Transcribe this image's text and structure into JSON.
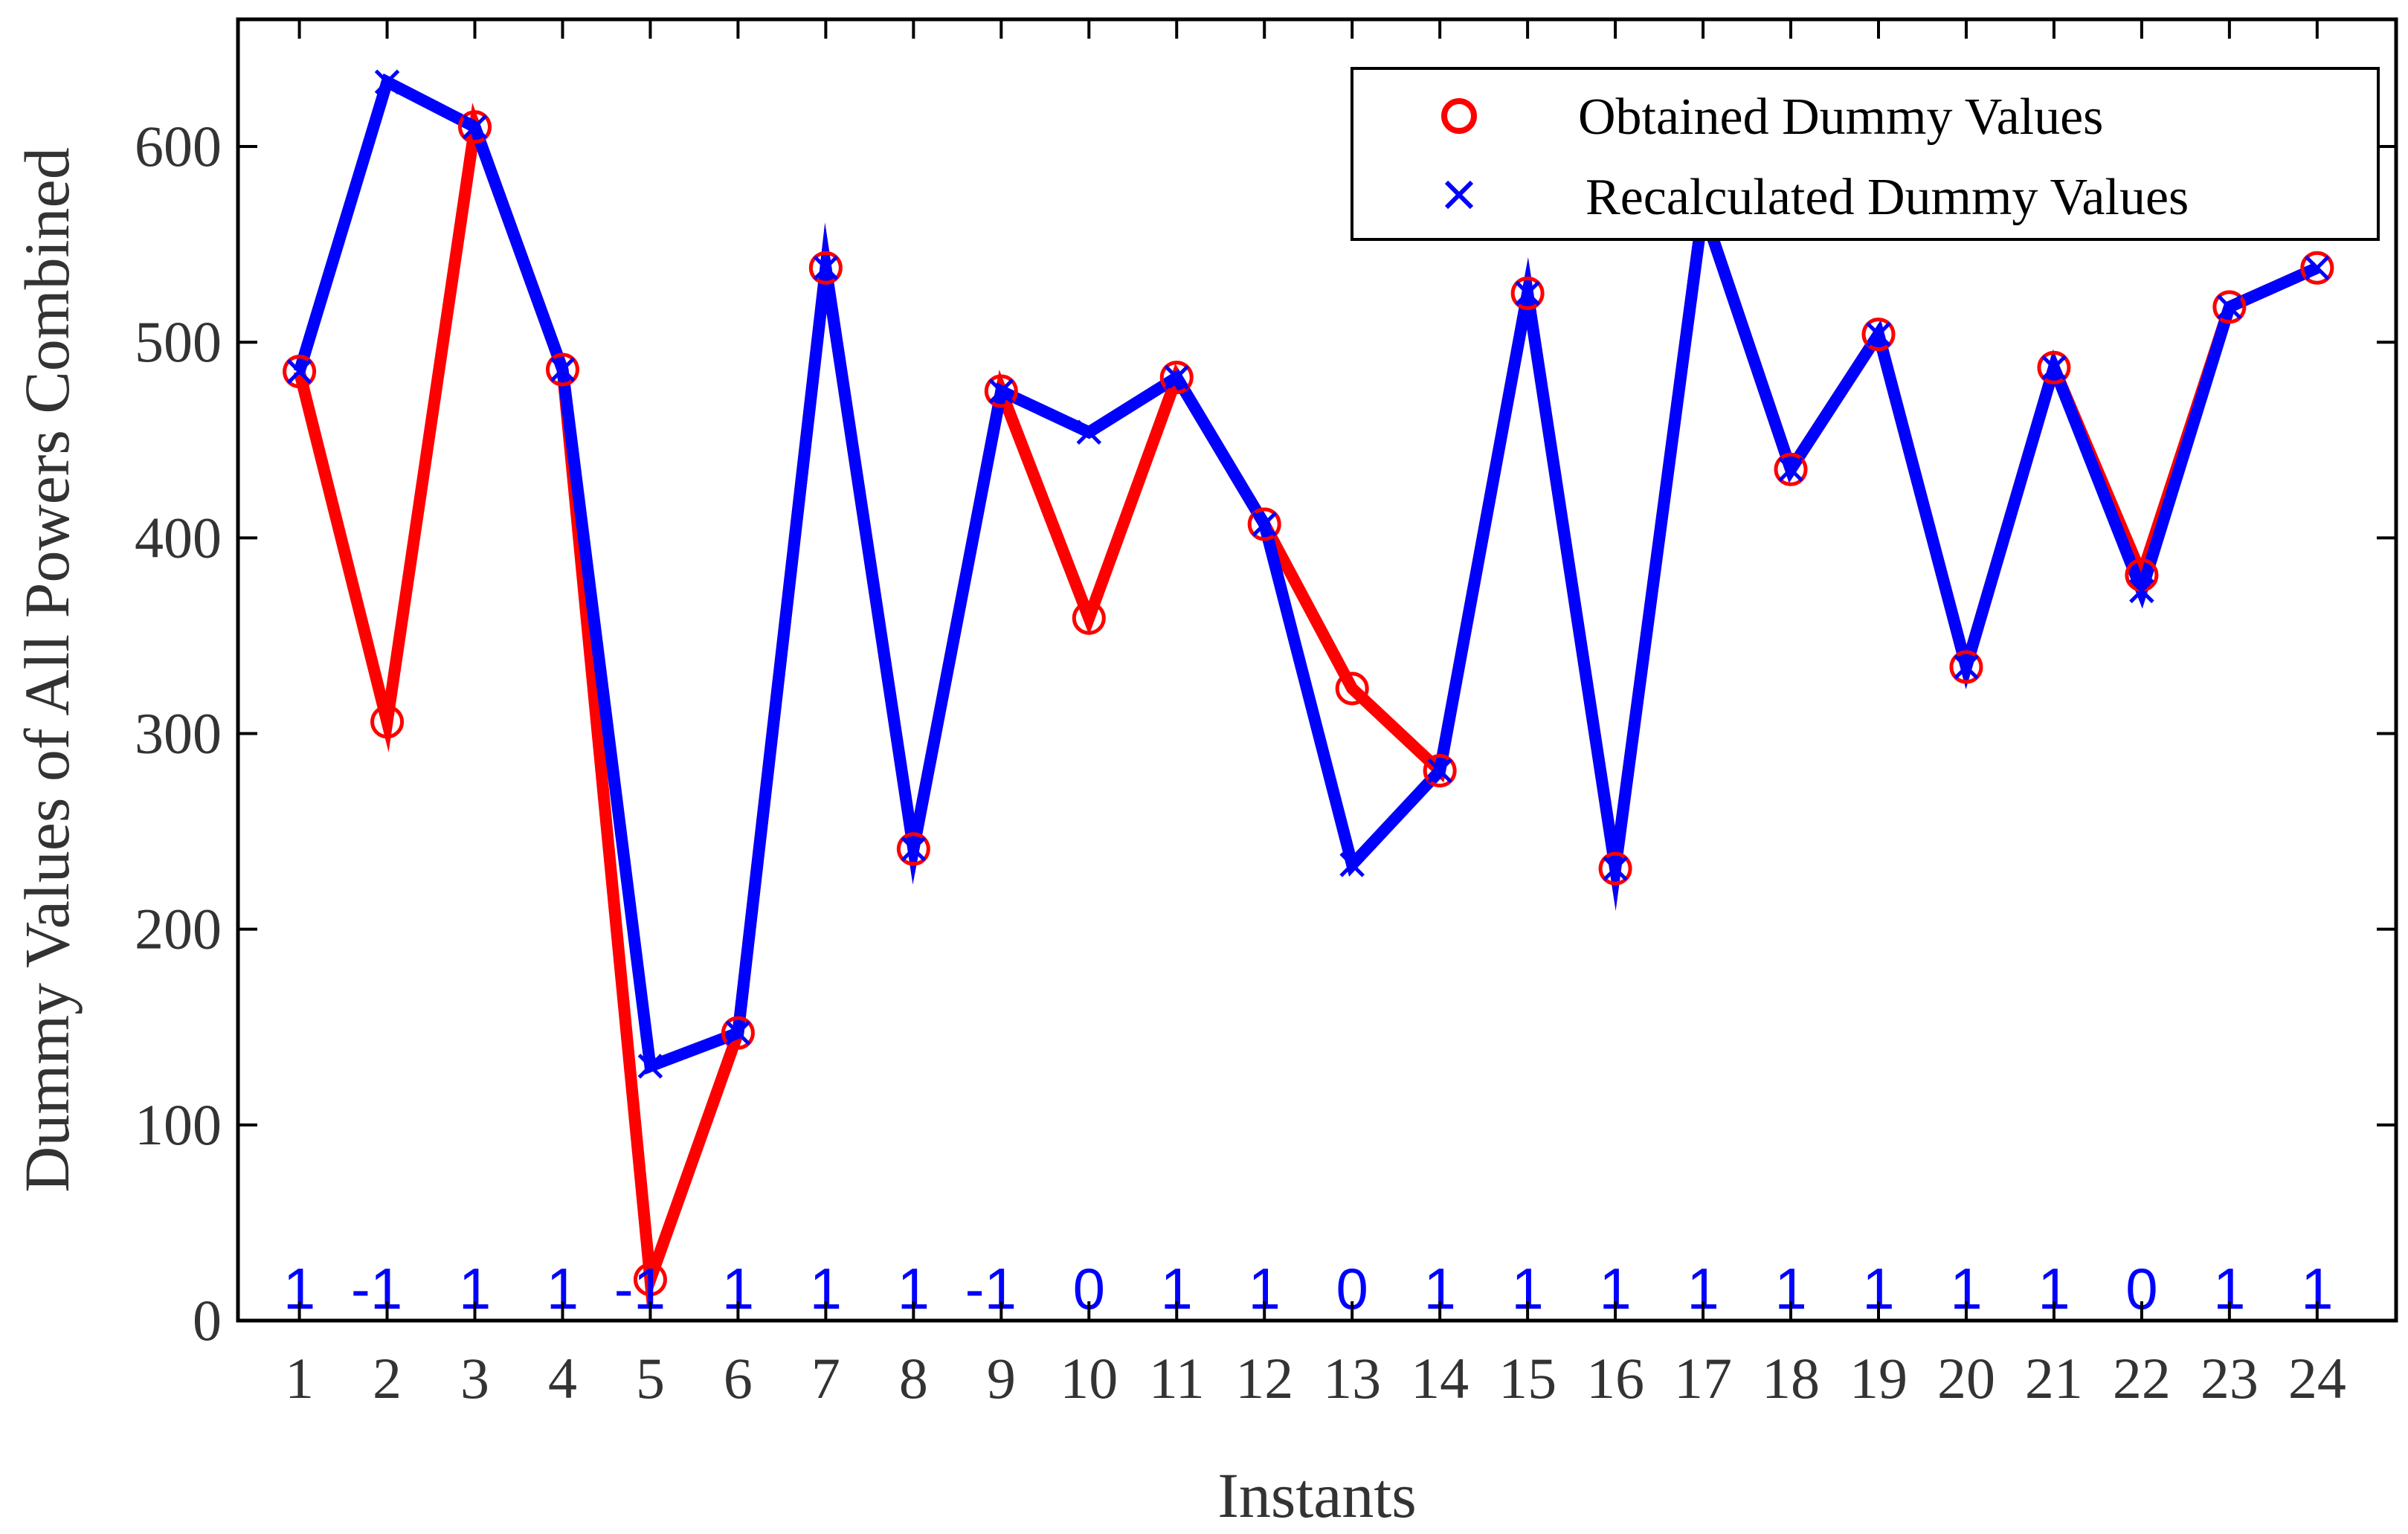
{
  "chart_data": {
    "type": "line",
    "title": "",
    "xlabel": "Instants",
    "ylabel": "Dummy Values of All Powers Combined",
    "x": [
      1,
      2,
      3,
      4,
      5,
      6,
      7,
      8,
      9,
      10,
      11,
      12,
      13,
      14,
      15,
      16,
      17,
      18,
      19,
      20,
      21,
      22,
      23,
      24
    ],
    "xlim": [
      0.3,
      24.9
    ],
    "ylim": [
      0,
      665
    ],
    "yticks": [
      0,
      100,
      200,
      300,
      400,
      500,
      600
    ],
    "grid": false,
    "legend_position": "top-right",
    "series": [
      {
        "name": "Obtained Dummy Values",
        "color": "#ff0000",
        "marker": "circle",
        "values": [
          485,
          306,
          610,
          486,
          21,
          147,
          538,
          241,
          475,
          359,
          482,
          407,
          323,
          281,
          525,
          231,
          568,
          435,
          504,
          334,
          487,
          381,
          518,
          538
        ]
      },
      {
        "name": "Recalculated Dummy Values",
        "color": "#0000ff",
        "marker": "x",
        "values": [
          485,
          633,
          610,
          486,
          130,
          147,
          538,
          241,
          475,
          454,
          482,
          407,
          233,
          281,
          525,
          231,
          568,
          435,
          504,
          334,
          487,
          373,
          518,
          538
        ]
      }
    ],
    "annotations": [
      "1",
      "-1",
      "1",
      "1",
      "-1",
      "1",
      "1",
      "1",
      "-1",
      "0",
      "1",
      "1",
      "0",
      "1",
      "1",
      "1",
      "1",
      "1",
      "1",
      "1",
      "1",
      "0",
      "1",
      "1"
    ],
    "annotation_color": "#0000ff"
  }
}
